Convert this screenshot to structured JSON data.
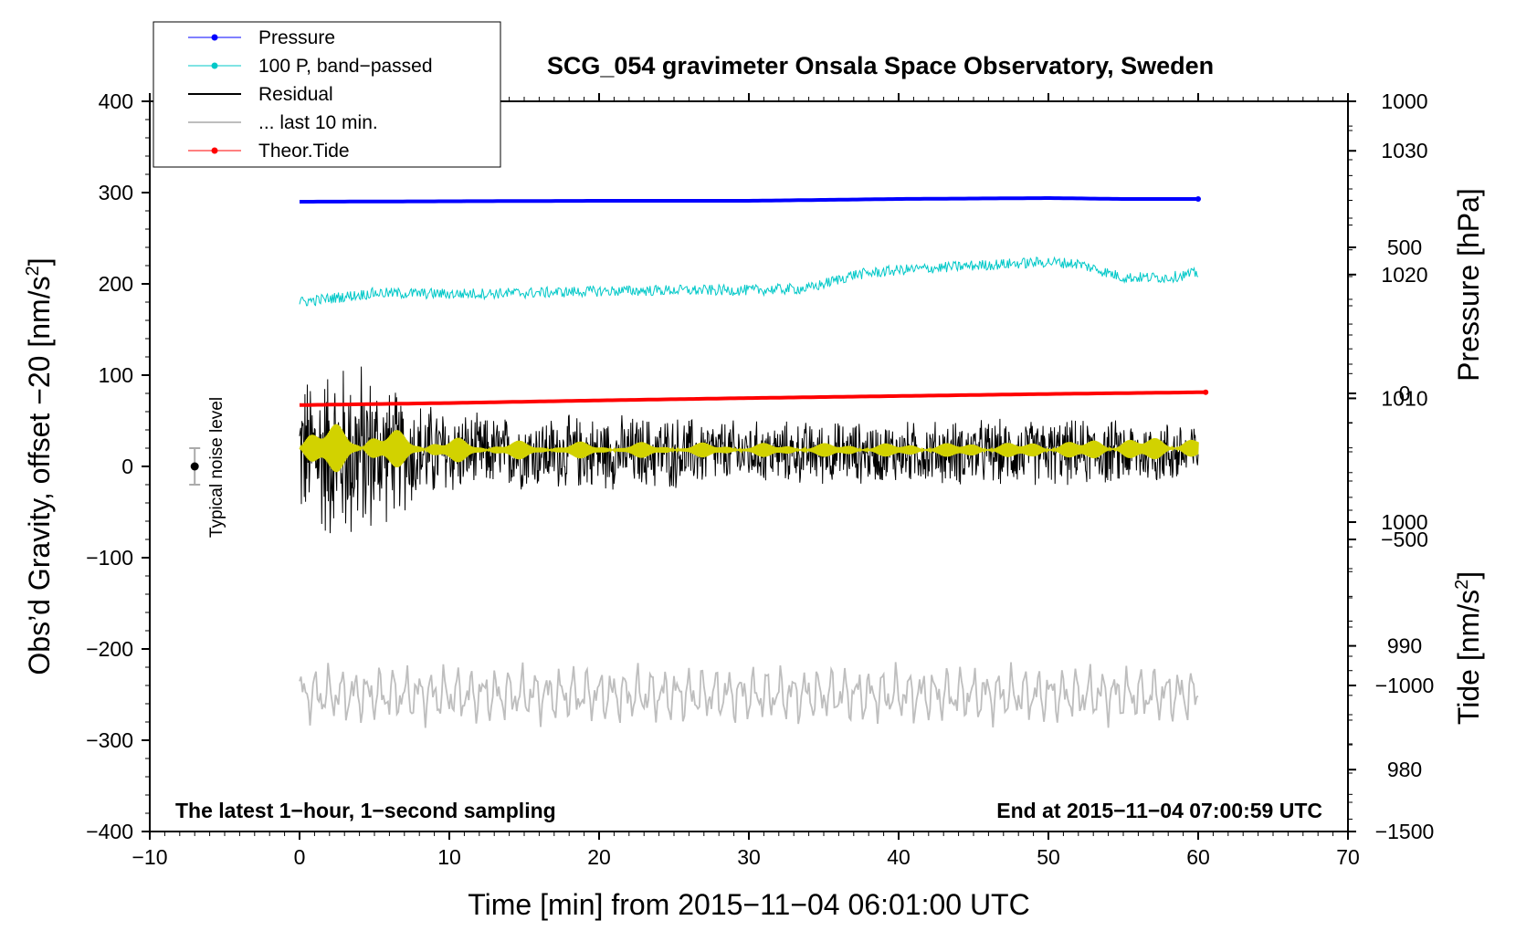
{
  "chart_data": {
    "type": "line",
    "title": "SCG_054 gravimeter Onsala Space Observatory, Sweden",
    "xlabel": "Time [min] from 2015−11−04 06:01:00 UTC",
    "ylabel_left": "Obs’d Gravity, offset −20 [nm/s",
    "ylabel_left_close": "]",
    "ylabel_pressure": "Pressure [hPa]",
    "ylabel_tide": "Tide [nm/s",
    "ylabel_tide_close": "]",
    "superscript": "2",
    "xlim": [
      -10,
      70
    ],
    "ylim": [
      -400,
      400
    ],
    "pressure_axis_range": [
      975,
      1034
    ],
    "tide_axis_range": [
      -1500,
      1000
    ],
    "x_ticks": [
      "−10",
      "0",
      "10",
      "20",
      "30",
      "40",
      "50",
      "60",
      "70"
    ],
    "x_tick_values": [
      -10,
      0,
      10,
      20,
      30,
      40,
      50,
      60,
      70
    ],
    "y_ticks": [
      "400",
      "300",
      "200",
      "100",
      "0",
      "−100",
      "−200",
      "−300",
      "−400"
    ],
    "y_tick_values": [
      400,
      300,
      200,
      100,
      0,
      -100,
      -200,
      -300,
      -400
    ],
    "pressure_ticks": [
      "1030",
      "1020",
      "1010",
      "1000",
      "990",
      "980"
    ],
    "pressure_tick_values": [
      1030,
      1020,
      1010,
      1000,
      990,
      980
    ],
    "tide_ticks": [
      "1000",
      "500",
      "0",
      "−500",
      "−1000",
      "−1500"
    ],
    "tide_tick_values": [
      1000,
      500,
      0,
      -500,
      -1000,
      -1500
    ],
    "note_left": "The latest 1−hour, 1−second sampling",
    "note_right": "End at 2015−11−04 07:00:59 UTC",
    "noise_label": "Typical noise level",
    "noise_bar": {
      "x": -7,
      "y": 0,
      "half_range": 20
    },
    "legend": [
      {
        "label": "Pressure",
        "color": "#0000ff",
        "marker": true
      },
      {
        "label": "100 P, band−passed",
        "color": "#00c8c8",
        "marker": true
      },
      {
        "label": "Residual",
        "color": "#000000",
        "marker": false
      },
      {
        "label": "... last 10 min.",
        "color": "#bebebe",
        "marker": false
      },
      {
        "label": "Theor.Tide",
        "color": "#ff0000",
        "marker": true
      }
    ],
    "series": [
      {
        "name": "Pressure",
        "color": "#0000ff",
        "axis": "left_gravity_units",
        "x": [
          0,
          10,
          20,
          30,
          35,
          40,
          50,
          55,
          60
        ],
        "values": [
          290,
          290.5,
          291,
          291,
          292,
          293,
          294,
          293,
          293
        ]
      },
      {
        "name": "100 P, band−passed",
        "color": "#00c8c8",
        "axis": "left_gravity_units",
        "x": [
          0,
          5,
          10,
          15,
          20,
          25,
          30,
          34,
          37,
          40,
          45,
          50,
          52,
          55,
          58,
          60
        ],
        "values": [
          180,
          190,
          189,
          190,
          192,
          193,
          193,
          195,
          210,
          215,
          220,
          224,
          222,
          207,
          207,
          212
        ],
        "noise_amplitude": 6
      },
      {
        "name": "Residual",
        "color": "#000000",
        "axis": "left_gravity_units",
        "x": [
          0,
          2,
          4,
          6,
          8,
          10,
          12,
          15,
          20,
          25,
          30,
          35,
          40,
          45,
          50,
          55,
          60
        ],
        "values": [
          15,
          15,
          15,
          15,
          15,
          15,
          15,
          15,
          15,
          15,
          15,
          15,
          15,
          15,
          15,
          15,
          15
        ],
        "envelope_x": [
          0,
          2,
          4,
          6,
          8,
          10,
          12,
          15,
          20,
          25,
          30,
          35,
          40,
          45,
          50,
          55,
          60
        ],
        "envelope": [
          90,
          110,
          115,
          80,
          65,
          55,
          45,
          45,
          45,
          45,
          38,
          38,
          38,
          40,
          40,
          40,
          40
        ]
      },
      {
        "name": "Residual (band-passed)",
        "color": "#d2d200",
        "axis": "left_gravity_units",
        "x": [
          0,
          5,
          10,
          15,
          20,
          30,
          40,
          50,
          60
        ],
        "values": [
          20,
          20,
          18,
          18,
          18,
          18,
          18,
          18,
          20
        ],
        "envelope_x": [
          0,
          2,
          4,
          6,
          8,
          10,
          15,
          20,
          30,
          40,
          50,
          55,
          60
        ],
        "envelope": [
          30,
          28,
          26,
          22,
          18,
          14,
          10,
          9,
          8,
          8,
          10,
          14,
          14
        ]
      },
      {
        "name": "... last 10 min.",
        "color": "#bebebe",
        "axis": "left_gravity_units",
        "x_start": 0,
        "x_end": 60,
        "baseline": -250,
        "amplitude": 32
      },
      {
        "name": "Theor.Tide",
        "color": "#ff0000",
        "axis": "tide",
        "x": [
          0,
          10,
          20,
          30,
          40,
          50,
          60.5
        ],
        "values": [
          -40,
          -33,
          -24,
          -16,
          -9,
          -2,
          4
        ]
      }
    ]
  }
}
